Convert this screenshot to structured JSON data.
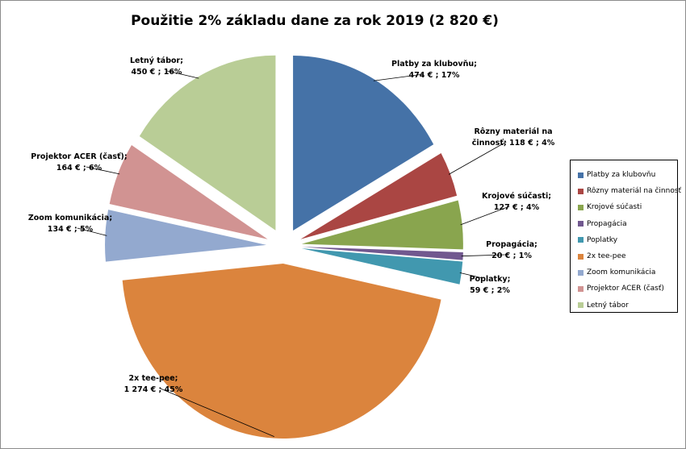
{
  "chart_data": {
    "type": "pie",
    "title": "Použitie 2% základu dane za rok 2019 (2 820 €)",
    "slices": [
      {
        "name": "Platby za klubovňu",
        "value": 474,
        "percent": 17,
        "color": "#4572A7",
        "label_name": "Platby za klubovňu;",
        "label_value": "474 € ; 17%"
      },
      {
        "name": "Rôzny materiál na činnosť",
        "value": 118,
        "percent": 4,
        "color": "#AA4643",
        "label_name": "Rôzny materiál na",
        "label_value": "činnosť;   118 € ; 4%"
      },
      {
        "name": "Krojové súčasti",
        "value": 127,
        "percent": 4,
        "color": "#89A54E",
        "label_name": "Krojové súčasti;",
        "label_value": "127 € ; 4%"
      },
      {
        "name": "Propagácia",
        "value": 20,
        "percent": 1,
        "color": "#71588F",
        "label_name": "Propagácia;",
        "label_value": "20 € ; 1%"
      },
      {
        "name": "Poplatky",
        "value": 59,
        "percent": 2,
        "color": "#4198AF",
        "label_name": "Poplatky;",
        "label_value": "59 € ; 2%"
      },
      {
        "name": "2x tee-pee",
        "value": 1274,
        "percent": 45,
        "color": "#DB843D",
        "label_name": "2x tee-pee;",
        "label_value": "1 274 € ; 45%"
      },
      {
        "name": "Zoom komunikácia",
        "value": 134,
        "percent": 5,
        "color": "#93A9CF",
        "label_name": "Zoom komunikácia;",
        "label_value": "134 € ; 5%"
      },
      {
        "name": "Projektor ACER (časť)",
        "value": 164,
        "percent": 6,
        "color": "#D19392",
        "label_name": "Projektor ACER (časť);",
        "label_value": "164 € ; 6%"
      },
      {
        "name": "Letný tábor",
        "value": 450,
        "percent": 16,
        "color": "#B9CD96",
        "label_name": "Letný tábor;",
        "label_value": "450 € ; 16%"
      }
    ],
    "legend": {
      "position": "right",
      "entries": [
        "Platby za klubovňu",
        "Rôzny materiál na činnosť",
        "Krojové súčasti",
        "Propagácia",
        "Poplatky",
        "2x tee-pee",
        "Zoom komunikácia",
        "Projektor ACER (časť)",
        "Letný tábor"
      ]
    }
  }
}
